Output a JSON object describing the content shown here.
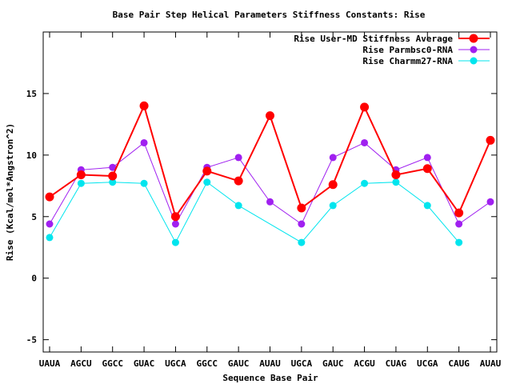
{
  "chart_data": {
    "type": "line",
    "title": "Base Pair Step Helical Parameters Stiffness Constants: Rise",
    "xlabel": "Sequence Base Pair",
    "ylabel": "Rise (Kcal/mol*Angstron^2)",
    "categories": [
      "UAUA",
      "AGCU",
      "GGCC",
      "GUAC",
      "UGCA",
      "GGCC",
      "GAUC",
      "AUAU",
      "UGCA",
      "GAUC",
      "ACGU",
      "CUAG",
      "UCGA",
      "CAUG",
      "AUAU"
    ],
    "ylim": [
      -6,
      20
    ],
    "yticks": [
      -5,
      0,
      5,
      10,
      15
    ],
    "grid": false,
    "legend_position": "top-right",
    "series": [
      {
        "name": "Rise User-MD Stiffness Average",
        "color": "#ff0000",
        "values": [
          6.6,
          8.4,
          8.3,
          14.0,
          5.0,
          8.7,
          7.9,
          13.2,
          5.7,
          7.6,
          13.9,
          8.4,
          8.9,
          5.3,
          11.2
        ]
      },
      {
        "name": "Rise Parmbsc0-RNA",
        "color": "#a020f0",
        "values": [
          4.4,
          8.8,
          9.0,
          11.0,
          4.4,
          9.0,
          9.8,
          6.2,
          4.4,
          9.8,
          11.0,
          8.8,
          9.8,
          4.4,
          6.2
        ]
      },
      {
        "name": "Rise Charmm27-RNA",
        "color": "#00e5ee",
        "values": [
          3.3,
          7.7,
          7.8,
          7.7,
          2.9,
          7.8,
          5.9,
          null,
          2.9,
          5.9,
          7.7,
          7.8,
          5.9,
          2.9,
          null
        ]
      }
    ]
  }
}
